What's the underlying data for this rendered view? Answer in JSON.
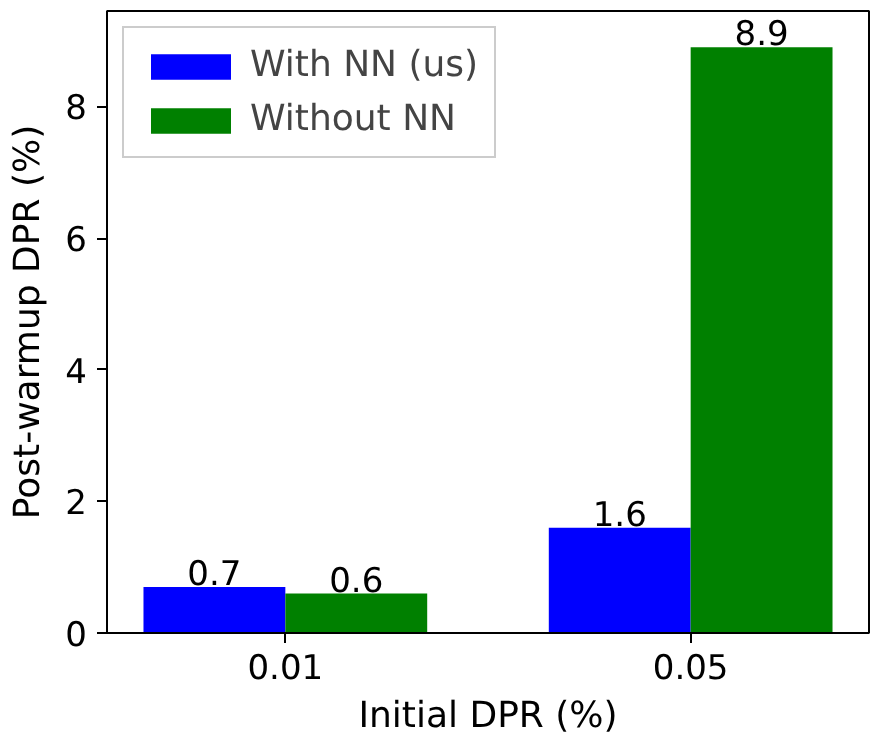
{
  "chart_data": {
    "type": "bar",
    "xlabel": "Initial DPR (%)",
    "ylabel": "Post-warmup DPR (%)",
    "categories": [
      "0.01",
      "0.05"
    ],
    "series": [
      {
        "name": "With NN (us)",
        "color": "#0000ff",
        "values": [
          0.7,
          1.6
        ]
      },
      {
        "name": "Without NN",
        "color": "#008000",
        "values": [
          0.6,
          8.9
        ]
      }
    ],
    "ylim": [
      0,
      9.45
    ],
    "yticks": [
      0,
      2,
      4,
      6,
      8
    ],
    "data_labels": true,
    "legend": "top left",
    "grid": false
  }
}
